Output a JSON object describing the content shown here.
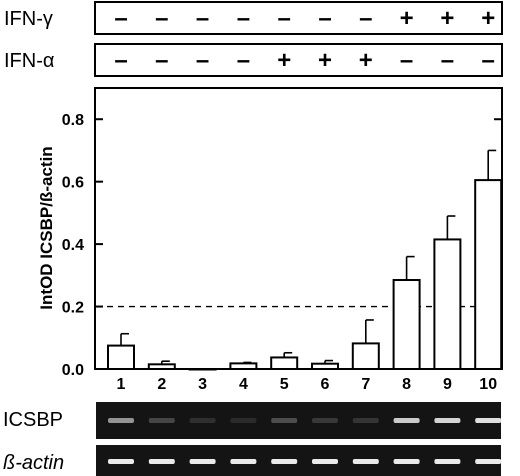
{
  "treatments": [
    {
      "label": "IFN-γ",
      "signs": [
        "–",
        "–",
        "–",
        "–",
        "–",
        "–",
        "–",
        "+",
        "+",
        "+"
      ]
    },
    {
      "label": "IFN-α",
      "signs": [
        "–",
        "–",
        "–",
        "–",
        "+",
        "+",
        "+",
        "–",
        "–",
        "–"
      ]
    }
  ],
  "chart_data": {
    "type": "bar",
    "ylabel": "IntOD ICSBP/ß-actin",
    "ylim": [
      0,
      0.9
    ],
    "yticks": [
      0.0,
      0.2,
      0.4,
      0.6,
      0.8
    ],
    "ytick_labels": [
      "0.0",
      "0.2",
      "0.4",
      "0.6",
      "0.8"
    ],
    "categories": [
      "1",
      "2",
      "3",
      "4",
      "5",
      "6",
      "7",
      "8",
      "9",
      "10"
    ],
    "values": [
      0.075,
      0.015,
      0.0,
      0.018,
      0.037,
      0.017,
      0.082,
      0.285,
      0.415,
      0.605
    ],
    "errors": [
      0.038,
      0.01,
      0.0,
      0.003,
      0.015,
      0.01,
      0.075,
      0.075,
      0.075,
      0.095
    ],
    "reference_line": 0.2,
    "grid": false
  },
  "gels": [
    {
      "label": "ICSBP",
      "intensities": [
        0.55,
        0.18,
        0.08,
        0.06,
        0.22,
        0.12,
        0.1,
        0.8,
        0.85,
        0.9
      ]
    },
    {
      "label": "ß-actin",
      "intensities": [
        0.95,
        0.95,
        0.95,
        0.95,
        0.95,
        0.95,
        0.95,
        0.95,
        0.95,
        0.95
      ]
    }
  ]
}
